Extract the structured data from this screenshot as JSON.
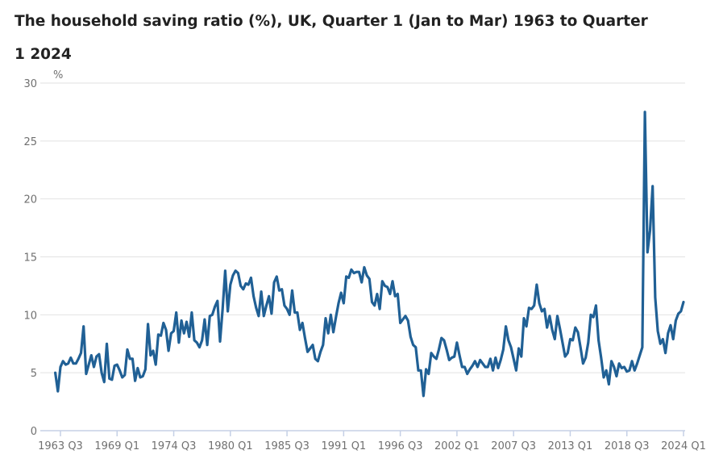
{
  "chart_data": {
    "type": "line",
    "title": "The household saving ratio (%), UK, Quarter 1 (Jan to Mar) 1963 to Quarter 1 2024",
    "ylabel": "%",
    "xlabel": "",
    "x_range": [
      "1963 Q1",
      "2024 Q1"
    ],
    "frequency": "quarterly",
    "ylim": [
      0,
      30
    ],
    "yticks": [
      0,
      5,
      10,
      15,
      20,
      25,
      30
    ],
    "xtick_labels": [
      "1963 Q3",
      "1969 Q1",
      "1974 Q3",
      "1980 Q1",
      "1985 Q3",
      "1991 Q1",
      "1996 Q3",
      "2002 Q1",
      "2007 Q3",
      "2013 Q1",
      "2018 Q3",
      "2024 Q1"
    ],
    "grid": true,
    "line_color": "#206095",
    "series": [
      {
        "values": [
          5.0,
          3.4,
          5.5,
          6.0,
          5.7,
          5.8,
          6.3,
          5.8,
          5.8,
          6.2,
          6.7,
          9.0,
          4.9,
          5.7,
          6.5,
          5.5,
          6.4,
          6.6,
          5.0,
          4.2,
          7.5,
          4.5,
          4.4,
          5.6,
          5.7,
          5.2,
          4.6,
          4.8,
          7.0,
          6.2,
          6.2,
          4.3,
          5.4,
          4.6,
          4.7,
          5.3,
          9.2,
          6.5,
          6.9,
          5.7,
          8.3,
          8.2,
          9.3,
          8.7,
          6.9,
          8.4,
          8.6,
          10.2,
          7.6,
          9.5,
          8.4,
          9.4,
          8.1,
          10.2,
          7.8,
          7.6,
          7.2,
          7.8,
          9.6,
          7.4,
          9.9,
          10.0,
          10.7,
          11.2,
          7.7,
          10.5,
          13.8,
          10.3,
          12.6,
          13.4,
          13.8,
          13.6,
          12.5,
          12.2,
          12.7,
          12.6,
          13.2,
          11.6,
          10.6,
          9.9,
          12.0,
          9.9,
          10.8,
          11.6,
          10.1,
          12.8,
          13.3,
          12.1,
          12.2,
          10.8,
          10.5,
          10.0,
          12.1,
          10.2,
          10.2,
          8.7,
          9.3,
          8.0,
          6.8,
          7.1,
          7.4,
          6.2,
          6.0,
          6.8,
          7.4,
          9.7,
          8.4,
          10.0,
          8.5,
          9.8,
          11.0,
          11.9,
          11.0,
          13.3,
          13.2,
          13.9,
          13.6,
          13.7,
          13.7,
          12.8,
          14.1,
          13.4,
          13.1,
          11.1,
          10.8,
          11.8,
          10.5,
          12.9,
          12.5,
          12.4,
          11.8,
          12.9,
          11.6,
          11.8,
          9.3,
          9.6,
          9.9,
          9.5,
          8.1,
          7.4,
          7.2,
          5.2,
          5.2,
          3.0,
          5.3,
          4.9,
          6.7,
          6.4,
          6.2,
          7.0,
          8.0,
          7.8,
          7.0,
          6.1,
          6.3,
          6.4,
          7.6,
          6.5,
          5.5,
          5.5,
          4.9,
          5.3,
          5.6,
          6.0,
          5.5,
          6.1,
          5.8,
          5.5,
          5.5,
          6.2,
          5.2,
          6.3,
          5.4,
          6.1,
          7.0,
          9.0,
          7.8,
          7.2,
          6.2,
          5.2,
          7.1,
          6.4,
          9.7,
          9.0,
          10.6,
          10.5,
          10.8,
          12.6,
          11.0,
          10.3,
          10.5,
          8.9,
          9.9,
          8.7,
          7.9,
          9.9,
          8.8,
          7.6,
          6.4,
          6.7,
          7.9,
          7.8,
          8.9,
          8.5,
          7.2,
          5.8,
          6.3,
          7.6,
          10.0,
          9.8,
          10.8,
          7.8,
          6.3,
          4.6,
          5.2,
          4.0,
          6.0,
          5.5,
          4.7,
          5.8,
          5.4,
          5.5,
          5.1,
          5.2,
          6.0,
          5.2,
          5.8,
          6.5,
          7.2,
          27.5,
          15.4,
          17.3,
          21.1,
          11.5,
          8.6,
          7.5,
          7.9,
          6.7,
          8.4,
          9.1,
          7.9,
          9.5,
          10.1,
          10.3,
          11.1
        ]
      }
    ]
  }
}
